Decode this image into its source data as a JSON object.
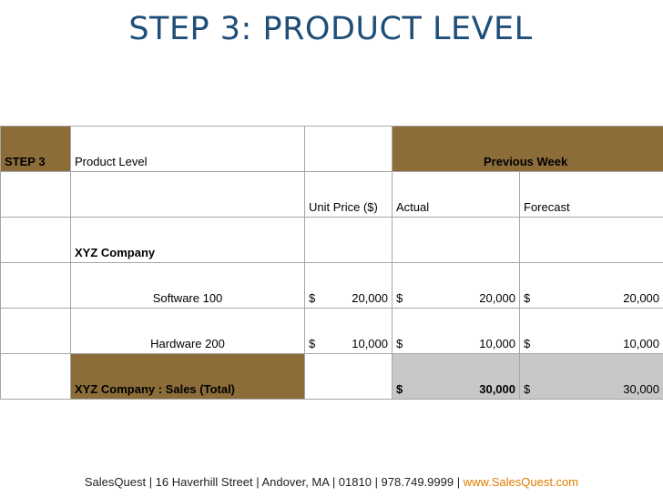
{
  "title": "STEP 3: PRODUCT LEVEL",
  "table": {
    "header_row": {
      "step": "STEP 3",
      "product_level": "Product Level",
      "previous_week": "Previous Week"
    },
    "subheader_row": {
      "unit_price": "Unit Price ($)",
      "actual": "Actual",
      "forecast": "Forecast"
    },
    "company_row": {
      "name": "XYZ Company"
    },
    "rows": [
      {
        "product": "Software 100",
        "currency": "$",
        "unit_price": "20,000",
        "actual": "20,000",
        "forecast": "20,000"
      },
      {
        "product": "Hardware 200",
        "currency": "$",
        "unit_price": "10,000",
        "actual": "10,000",
        "forecast": "10,000"
      }
    ],
    "total_row": {
      "label": "XYZ Company : Sales (Total)",
      "currency": "$",
      "actual": "30,000",
      "forecast": "30,000"
    }
  },
  "footer": {
    "text": "SalesQuest | 16 Haverhill Street | Andover, MA | 01810 | 978.749.9999 | ",
    "link": "www.SalesQuest.com"
  },
  "colors": {
    "title": "#1f4e79",
    "gold": "#8c6d3a",
    "gray": "#c8c8c8",
    "link": "#e07b00"
  }
}
